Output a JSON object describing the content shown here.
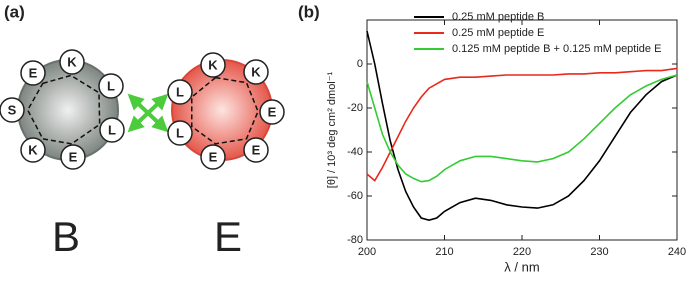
{
  "panel_a": {
    "label": "(a)",
    "helices": [
      {
        "name": "B",
        "residues": [
          "E",
          "K",
          "L",
          "L",
          "E",
          "K",
          "S"
        ]
      },
      {
        "name": "E",
        "residues": [
          "K",
          "K",
          "E",
          "E",
          "E",
          "L",
          "L"
        ]
      }
    ]
  },
  "chart_data": {
    "type": "line",
    "label": "(b)",
    "x_label": "λ / nm",
    "y_label": "[θ] / 10³ deg cm² dmol⁻¹",
    "x": [
      200,
      201,
      202,
      203,
      204,
      205,
      206,
      207,
      208,
      209,
      210,
      212,
      214,
      216,
      218,
      220,
      222,
      224,
      226,
      228,
      230,
      232,
      234,
      236,
      238,
      240
    ],
    "series": [
      {
        "name": "0.25 mM peptide B",
        "color": "#000000",
        "values": [
          15,
          0,
          -18,
          -35,
          -48,
          -58,
          -65,
          -70,
          -71,
          -70,
          -67,
          -63,
          -61,
          -62,
          -64,
          -65,
          -65.5,
          -64,
          -60,
          -53,
          -44,
          -33,
          -22,
          -14,
          -8,
          -5
        ]
      },
      {
        "name": "0.25 mM peptide E",
        "color": "#e8291c",
        "values": [
          -50,
          -53,
          -47,
          -40,
          -33,
          -26,
          -20,
          -15,
          -11,
          -9,
          -7,
          -6,
          -6,
          -5.5,
          -5,
          -5,
          -5,
          -5,
          -4.5,
          -4.5,
          -4,
          -4,
          -3.5,
          -3,
          -3,
          -2
        ]
      },
      {
        "name": "0.125 mM peptide B + 0.125 mM peptide E",
        "color": "#33cc33",
        "values": [
          -8,
          -20,
          -32,
          -40,
          -46,
          -50,
          -52,
          -53.5,
          -53,
          -51,
          -48,
          -44,
          -42,
          -42,
          -43,
          -44,
          -44.5,
          -43,
          -40,
          -34,
          -27,
          -20,
          -14,
          -10,
          -7,
          -5
        ]
      }
    ],
    "xlim": [
      200,
      240
    ],
    "xticks": [
      200,
      210,
      220,
      230,
      240
    ],
    "ylim": [
      -80,
      20
    ],
    "yticks": [
      -80,
      -60,
      -40,
      -20,
      0
    ]
  }
}
